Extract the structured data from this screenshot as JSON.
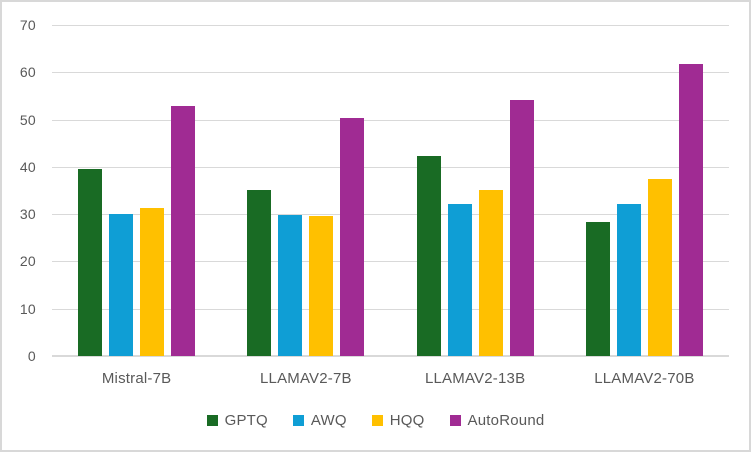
{
  "chart_data": {
    "type": "bar",
    "title": "",
    "xlabel": "",
    "ylabel": "",
    "categories": [
      "Mistral-7B",
      "LLAMAV2-7B",
      "LLAMAV2-13B",
      "LLAMAV2-70B"
    ],
    "series": [
      {
        "name": "GPTQ",
        "color": "#196b24",
        "values": [
          39.5,
          35.2,
          42.4,
          28.3
        ]
      },
      {
        "name": "AWQ",
        "color": "#0f9ed5",
        "values": [
          30.1,
          29.9,
          32.1,
          32.1
        ]
      },
      {
        "name": "HQQ",
        "color": "#ffc000",
        "values": [
          31.3,
          29.7,
          35.2,
          37.4
        ]
      },
      {
        "name": "AutoRound",
        "color": "#a02b93",
        "values": [
          52.8,
          50.3,
          54.1,
          61.8
        ]
      }
    ],
    "ylim": [
      0,
      70
    ],
    "yticks": [
      0,
      10,
      20,
      30,
      40,
      50,
      60,
      70
    ],
    "grid": true,
    "legend_position": "bottom"
  },
  "style": {
    "gridline_color": "#d9d9d9",
    "axis_line_color": "#d9d9d9",
    "text_color": "#595959",
    "frame_border_color": "#d8d8d8",
    "background_color": "#ffffff"
  }
}
